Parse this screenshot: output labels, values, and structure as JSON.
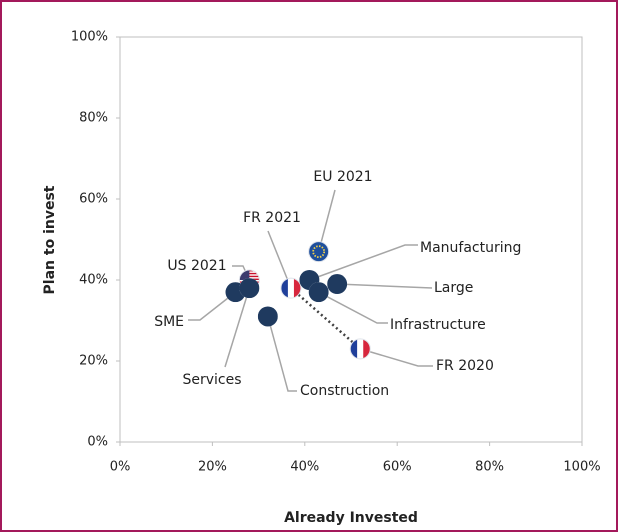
{
  "chart_data": {
    "type": "scatter",
    "xlabel": "Already Invested",
    "ylabel": "Plan to invest",
    "xlim": [
      0,
      100
    ],
    "ylim": [
      0,
      100
    ],
    "xticks": [
      {
        "value": 0,
        "label": "0%"
      },
      {
        "value": 20,
        "label": "20%"
      },
      {
        "value": 40,
        "label": "40%"
      },
      {
        "value": 60,
        "label": "60%"
      },
      {
        "value": 80,
        "label": "80%"
      },
      {
        "value": 100,
        "label": "100%"
      }
    ],
    "yticks": [
      {
        "value": 0,
        "label": "0%"
      },
      {
        "value": 20,
        "label": "20%"
      },
      {
        "value": 40,
        "label": "40%"
      },
      {
        "value": 60,
        "label": "60%"
      },
      {
        "value": 80,
        "label": "80%"
      },
      {
        "value": 100,
        "label": "100%"
      }
    ],
    "color": "#1f3a5f",
    "points": [
      {
        "label": "EU 2021",
        "x": 43,
        "y": 47,
        "marker": "flag-eu"
      },
      {
        "label": "US 2021",
        "x": 28,
        "y": 40,
        "marker": "flag-us"
      },
      {
        "label": "FR 2021",
        "x": 37,
        "y": 38,
        "marker": "flag-fr"
      },
      {
        "label": "FR 2020",
        "x": 52,
        "y": 23,
        "marker": "flag-fr"
      },
      {
        "label": "Manufacturing",
        "x": 41,
        "y": 40,
        "marker": "dot"
      },
      {
        "label": "Large",
        "x": 47,
        "y": 39,
        "marker": "dot"
      },
      {
        "label": "Infrastructure",
        "x": 43,
        "y": 37,
        "marker": "dot"
      },
      {
        "label": "SME",
        "x": 25,
        "y": 37,
        "marker": "dot"
      },
      {
        "label": "Services",
        "x": 28,
        "y": 38,
        "marker": "dot"
      },
      {
        "label": "Construction",
        "x": 32,
        "y": 31,
        "marker": "dot"
      }
    ],
    "connectors": [
      [
        2,
        3
      ]
    ]
  }
}
